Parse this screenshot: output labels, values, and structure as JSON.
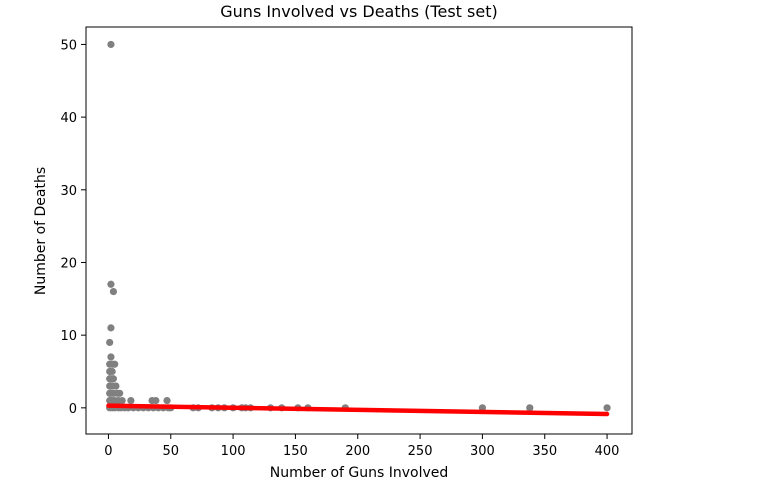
{
  "chart_data": {
    "type": "scatter",
    "title": "Guns Involved vs Deaths (Test set)",
    "xlabel": "Number of Guns Involved",
    "ylabel": "Number of Deaths",
    "xlim": [
      -18,
      420
    ],
    "ylim": [
      -3.6,
      52.4
    ],
    "xticks": [
      0,
      50,
      100,
      150,
      200,
      250,
      300,
      350,
      400
    ],
    "yticks": [
      0,
      10,
      20,
      30,
      40,
      50
    ],
    "grid": false,
    "legend": "none",
    "colors": {
      "points": "#808080",
      "fit_line": "#ff0000"
    },
    "points": [
      {
        "x": 2,
        "y": 50
      },
      {
        "x": 2,
        "y": 17
      },
      {
        "x": 4,
        "y": 16
      },
      {
        "x": 2,
        "y": 11
      },
      {
        "x": 1,
        "y": 9
      },
      {
        "x": 2,
        "y": 7
      },
      {
        "x": 1,
        "y": 6
      },
      {
        "x": 3,
        "y": 6
      },
      {
        "x": 5,
        "y": 6
      },
      {
        "x": 1,
        "y": 5
      },
      {
        "x": 3,
        "y": 5
      },
      {
        "x": 1,
        "y": 4
      },
      {
        "x": 2,
        "y": 4
      },
      {
        "x": 4,
        "y": 4
      },
      {
        "x": 1,
        "y": 3
      },
      {
        "x": 3,
        "y": 3
      },
      {
        "x": 6,
        "y": 3
      },
      {
        "x": 1,
        "y": 2
      },
      {
        "x": 2,
        "y": 2
      },
      {
        "x": 4,
        "y": 2
      },
      {
        "x": 7,
        "y": 2
      },
      {
        "x": 9,
        "y": 2
      },
      {
        "x": 1,
        "y": 1
      },
      {
        "x": 2,
        "y": 1
      },
      {
        "x": 3,
        "y": 1
      },
      {
        "x": 5,
        "y": 1
      },
      {
        "x": 8,
        "y": 1
      },
      {
        "x": 11,
        "y": 1
      },
      {
        "x": 18,
        "y": 1
      },
      {
        "x": 35,
        "y": 1
      },
      {
        "x": 38,
        "y": 1
      },
      {
        "x": 47,
        "y": 1
      },
      {
        "x": 1,
        "y": 0
      },
      {
        "x": 3,
        "y": 0
      },
      {
        "x": 5,
        "y": 0
      },
      {
        "x": 8,
        "y": 0
      },
      {
        "x": 10,
        "y": 0
      },
      {
        "x": 13,
        "y": 0
      },
      {
        "x": 16,
        "y": 0
      },
      {
        "x": 20,
        "y": 0
      },
      {
        "x": 24,
        "y": 0
      },
      {
        "x": 28,
        "y": 0
      },
      {
        "x": 32,
        "y": 0
      },
      {
        "x": 36,
        "y": 0
      },
      {
        "x": 40,
        "y": 0
      },
      {
        "x": 44,
        "y": 0
      },
      {
        "x": 48,
        "y": 0
      },
      {
        "x": 50,
        "y": 0
      },
      {
        "x": 68,
        "y": 0
      },
      {
        "x": 72,
        "y": 0
      },
      {
        "x": 83,
        "y": 0
      },
      {
        "x": 88,
        "y": 0
      },
      {
        "x": 93,
        "y": 0
      },
      {
        "x": 100,
        "y": 0
      },
      {
        "x": 107,
        "y": 0
      },
      {
        "x": 110,
        "y": 0
      },
      {
        "x": 114,
        "y": 0
      },
      {
        "x": 130,
        "y": 0
      },
      {
        "x": 139,
        "y": 0
      },
      {
        "x": 152,
        "y": 0
      },
      {
        "x": 160,
        "y": 0
      },
      {
        "x": 190,
        "y": 0
      },
      {
        "x": 300,
        "y": 0
      },
      {
        "x": 338,
        "y": 0
      },
      {
        "x": 400,
        "y": 0
      }
    ],
    "fit_line": [
      {
        "x": 0,
        "y": 0.3
      },
      {
        "x": 400,
        "y": -0.85
      }
    ]
  }
}
